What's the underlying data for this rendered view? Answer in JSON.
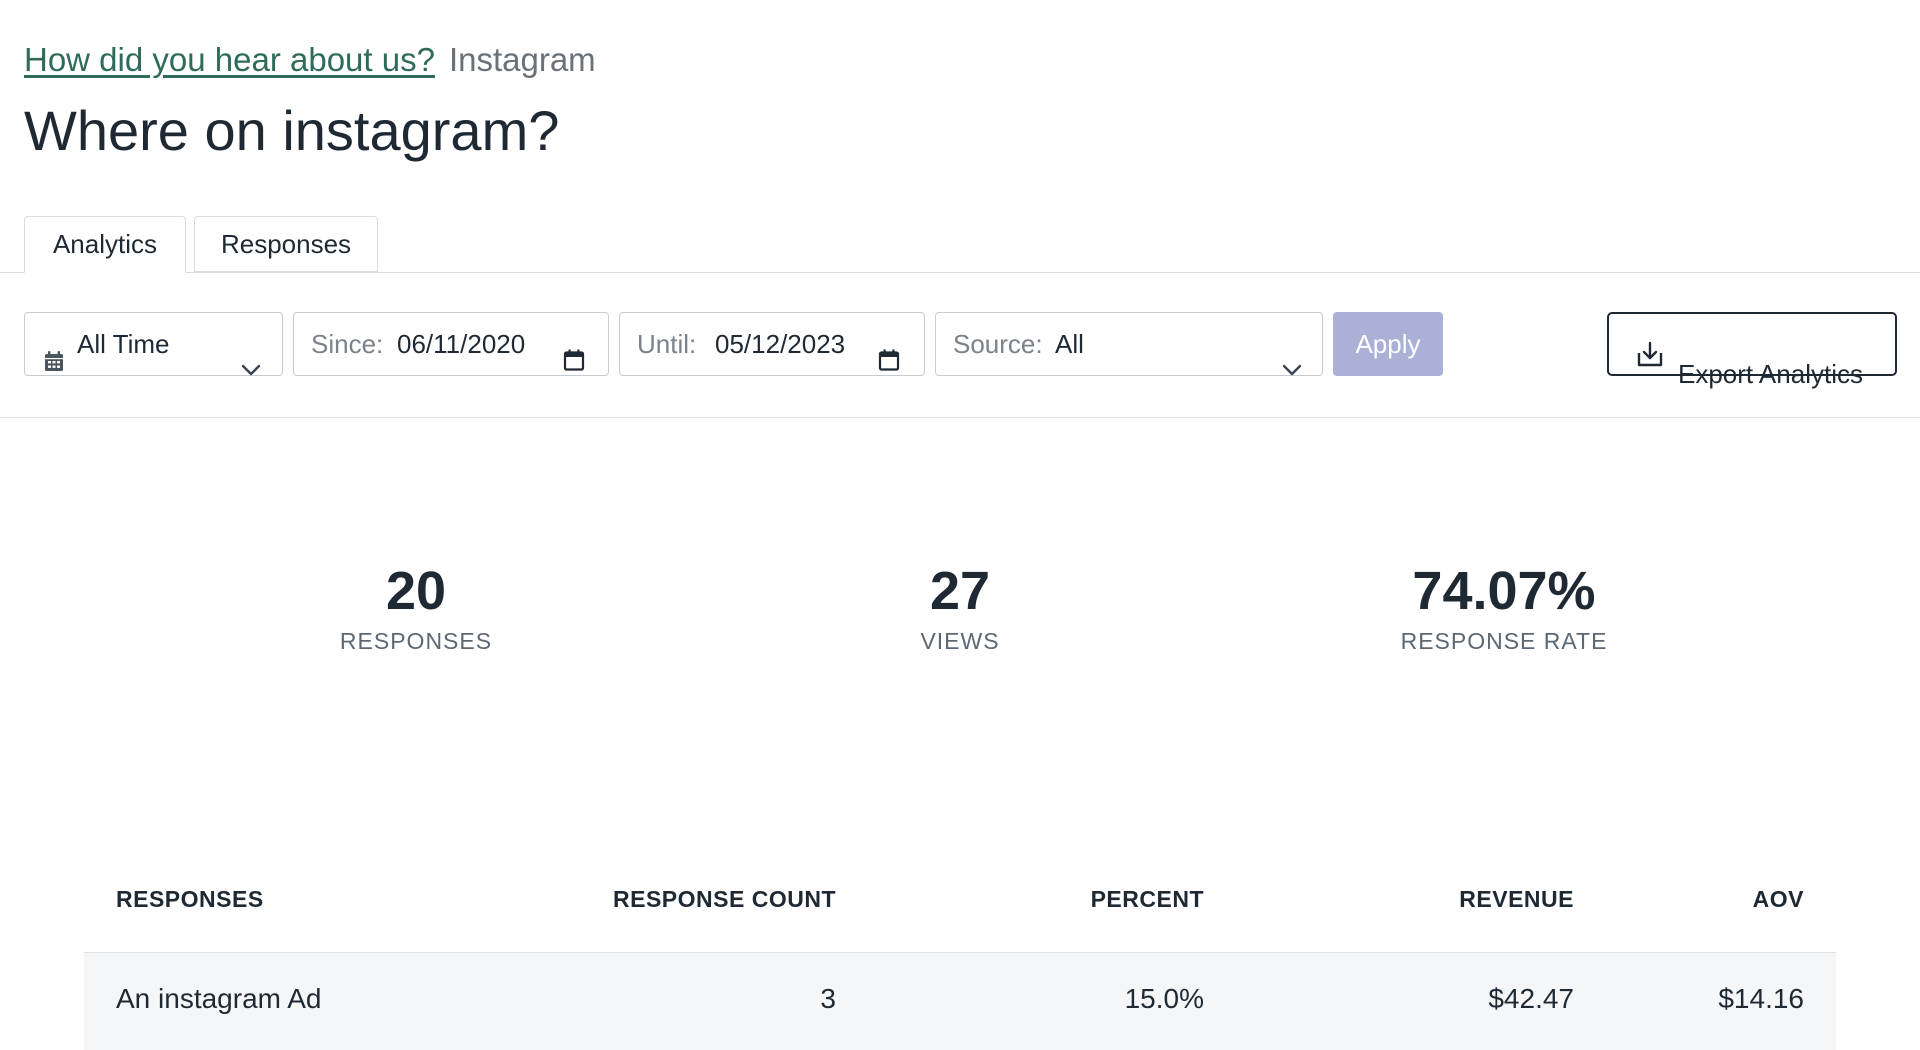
{
  "breadcrumb": {
    "parent_link": "How did you hear about us?",
    "current": "Instagram"
  },
  "page": {
    "title": "Where on instagram?"
  },
  "tabs": [
    {
      "label": "Analytics",
      "active": true
    },
    {
      "label": "Responses",
      "active": false
    }
  ],
  "filters": {
    "range": {
      "selected": "All Time"
    },
    "since": {
      "label": "Since:",
      "value": "06/11/2020"
    },
    "until": {
      "label": "Until:",
      "value": "05/12/2023"
    },
    "source": {
      "label": "Source:",
      "selected": "All"
    },
    "apply_label": "Apply",
    "export_label": "Export Analytics"
  },
  "stats": [
    {
      "value": "20",
      "label": "RESPONSES"
    },
    {
      "value": "27",
      "label": "VIEWS"
    },
    {
      "value": "74.07%",
      "label": "RESPONSE RATE"
    }
  ],
  "table": {
    "columns": [
      "RESPONSES",
      "RESPONSE COUNT",
      "PERCENT",
      "REVENUE",
      "AOV"
    ],
    "rows": [
      {
        "response": "An instagram Ad",
        "count": "3",
        "percent": "15.0%",
        "revenue": "$42.47",
        "aov": "$14.16"
      }
    ]
  },
  "colors": {
    "link": "#2e6b5a",
    "apply_disabled": "#aab0d6",
    "text": "#1f2933",
    "muted": "#5c6873"
  },
  "icons": {
    "range": "calendar-icon",
    "date_picker": "calendar-outline-icon",
    "dropdown": "chevron-down-icon",
    "export": "download-icon"
  }
}
